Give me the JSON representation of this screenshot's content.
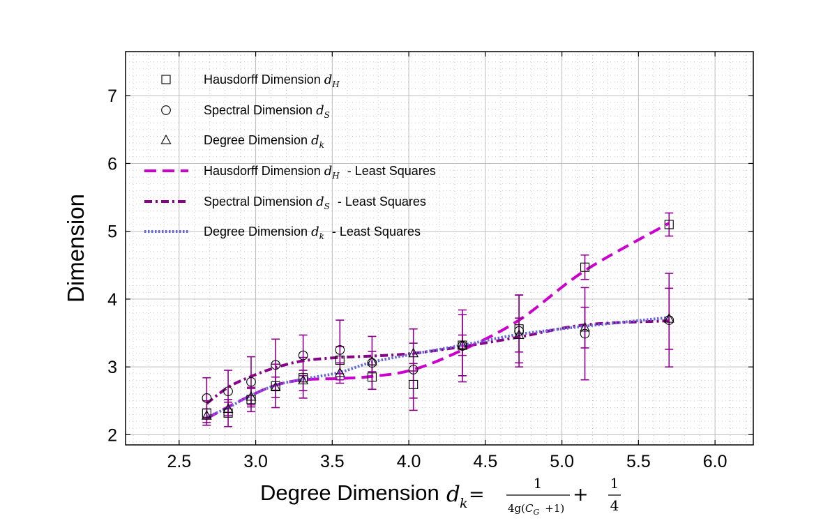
{
  "chart_data": {
    "type": "scatter",
    "ylabel": "Dimension",
    "xlabel": {
      "text": "Degree Dimension",
      "symbol": "d",
      "subscript": "k",
      "equals": "=",
      "frac1_num": "1",
      "frac1_den": "4g(",
      "frac1_den_sym": "C",
      "frac1_den_sub": "G",
      "frac1_den_tail": "+1)",
      "plus": "+",
      "frac2_num": "1",
      "frac2_den": "4"
    },
    "xlim": [
      2.15,
      6.25
    ],
    "ylim": [
      1.85,
      7.65
    ],
    "xticks": [
      "2.5",
      "3.0",
      "3.5",
      "4.0",
      "4.5",
      "5.0",
      "5.5",
      "6.0"
    ],
    "yticks": [
      "2",
      "3",
      "4",
      "5",
      "6",
      "7"
    ],
    "grid": true,
    "legend_position": "top-left",
    "x": [
      2.68,
      2.82,
      2.97,
      3.13,
      3.31,
      3.55,
      3.76,
      4.03,
      4.35,
      4.72,
      5.15,
      5.7
    ],
    "series": [
      {
        "name": "Hausdorff Dimension",
        "sub": "H",
        "marker": "square",
        "values": [
          2.32,
          2.32,
          2.52,
          2.72,
          2.84,
          3.1,
          2.85,
          2.74,
          3.32,
          3.56,
          4.47,
          5.1
        ],
        "errors": [
          0.18,
          0.2,
          0.18,
          0.32,
          0.3,
          0.2,
          0.18,
          0.2,
          0.45,
          0.5,
          0.18,
          0.17
        ]
      },
      {
        "name": "Spectral Dimension",
        "sub": "S",
        "marker": "circle",
        "values": [
          2.54,
          2.64,
          2.78,
          3.03,
          3.17,
          3.25,
          3.06,
          2.96,
          3.31,
          3.53,
          3.49,
          3.69
        ],
        "errors": [
          0.3,
          0.31,
          0.37,
          0.38,
          0.3,
          0.44,
          0.39,
          0.6,
          0.53,
          0.53,
          0.68,
          0.69
        ]
      },
      {
        "name": "Degree Dimension",
        "sub": "k",
        "marker": "triangle",
        "values": [
          2.28,
          2.38,
          2.56,
          2.7,
          2.8,
          2.91,
          3.08,
          3.2,
          3.32,
          3.47,
          3.58,
          3.71
        ],
        "errors": [
          0.1,
          0.1,
          0.12,
          0.15,
          0.15,
          0.15,
          0.15,
          0.15,
          0.15,
          0.25,
          0.3,
          0.45
        ]
      }
    ],
    "fits": [
      {
        "name": "Hausdorff Dimension",
        "sub": "H",
        "suffix": "- Least Squares",
        "style": "dashed",
        "color": "#cc00cc",
        "values": [
          2.24,
          2.41,
          2.58,
          2.73,
          2.81,
          2.83,
          2.86,
          2.96,
          3.25,
          3.69,
          4.42,
          5.12
        ]
      },
      {
        "name": "Spectral Dimension",
        "sub": "S",
        "suffix": "- Least Squares",
        "style": "dashdot",
        "color": "#880088",
        "values": [
          2.46,
          2.7,
          2.86,
          2.99,
          3.09,
          3.14,
          3.16,
          3.2,
          3.3,
          3.44,
          3.62,
          3.68
        ]
      },
      {
        "name": "Degree Dimension",
        "sub": "k",
        "suffix": "- Least Squares",
        "style": "dotted",
        "color": "#6666dd",
        "values": [
          2.26,
          2.4,
          2.58,
          2.73,
          2.82,
          2.92,
          3.07,
          3.19,
          3.32,
          3.48,
          3.6,
          3.73
        ]
      }
    ],
    "errorbar_color": "#8b008b",
    "marker_color": "#000000"
  }
}
